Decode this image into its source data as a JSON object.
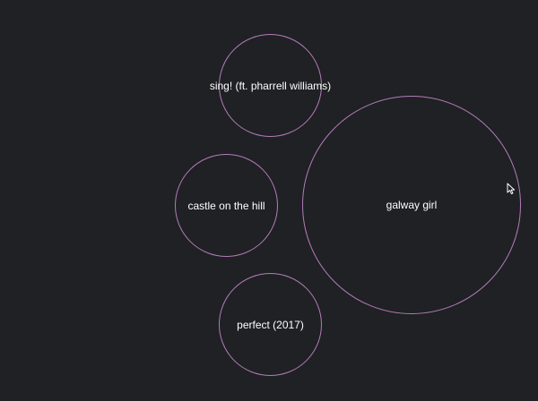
{
  "bubbles": {
    "sing": {
      "label": "sing! (ft. pharrell williams)"
    },
    "castle": {
      "label": "castle on the hill"
    },
    "perfect": {
      "label": "perfect (2017)"
    },
    "galway": {
      "label": "galway girl"
    }
  },
  "colors": {
    "background": "#1f2125",
    "bubble_stroke": "#b57ab8",
    "label": "#ffffff"
  },
  "icons": {
    "cursor": "mouse-pointer-icon"
  }
}
